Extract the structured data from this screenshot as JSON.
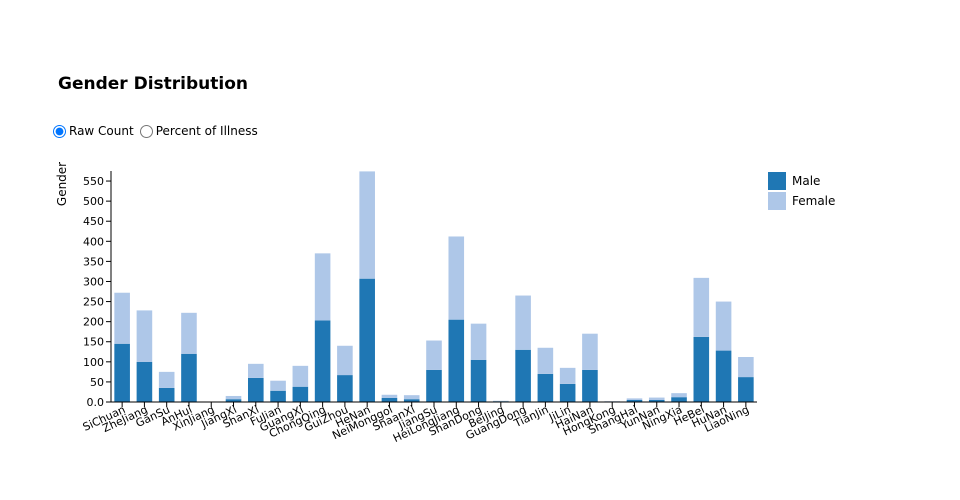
{
  "title": "Gender Distribution",
  "mode": {
    "options": [
      {
        "label": "Raw Count",
        "checked": true
      },
      {
        "label": "Percent of Illness",
        "checked": false
      }
    ]
  },
  "colors": {
    "male": "#1f77b4",
    "female": "#aec7e8"
  },
  "chart_data": {
    "type": "bar",
    "stacked": true,
    "title": "Gender Distribution",
    "xlabel": "",
    "ylabel": "Gender",
    "ylim": [
      0,
      575
    ],
    "yticks": [
      0,
      50,
      100,
      150,
      200,
      250,
      300,
      350,
      400,
      450,
      500,
      550
    ],
    "ytick_labels": [
      "0.0",
      "50",
      "100",
      "150",
      "200",
      "250",
      "300",
      "350",
      "400",
      "450",
      "500",
      "550"
    ],
    "legend_position": "top-right",
    "categories": [
      "SiChuan",
      "ZheJiang",
      "GanSu",
      "AnHui",
      "XinJiang",
      "JiangXi",
      "ShanXi",
      "FuJian",
      "GuangXi",
      "ChongQing",
      "GuiZhou",
      "HeNan",
      "NeiMonggol",
      "ShaanXi",
      "JiangSu",
      "HeiLongJiang",
      "ShanDong",
      "BeiJing",
      "GuangDong",
      "TianJin",
      "JiLin",
      "HaiNan",
      "HongKong",
      "ShangHai",
      "YunNan",
      "NingXia",
      "HeBei",
      "HuNan",
      "LiaoNing"
    ],
    "series": [
      {
        "name": "Male",
        "values": [
          145,
          100,
          35,
          120,
          0,
          7,
          60,
          28,
          38,
          203,
          67,
          307,
          10,
          7,
          80,
          205,
          105,
          2,
          130,
          70,
          45,
          80,
          1,
          5,
          5,
          12,
          162,
          128,
          62
        ]
      },
      {
        "name": "Female",
        "values": [
          127,
          128,
          40,
          102,
          0,
          8,
          35,
          25,
          52,
          167,
          73,
          267,
          8,
          10,
          73,
          207,
          90,
          1,
          135,
          65,
          40,
          90,
          1,
          4,
          6,
          10,
          147,
          122,
          50
        ]
      }
    ]
  }
}
